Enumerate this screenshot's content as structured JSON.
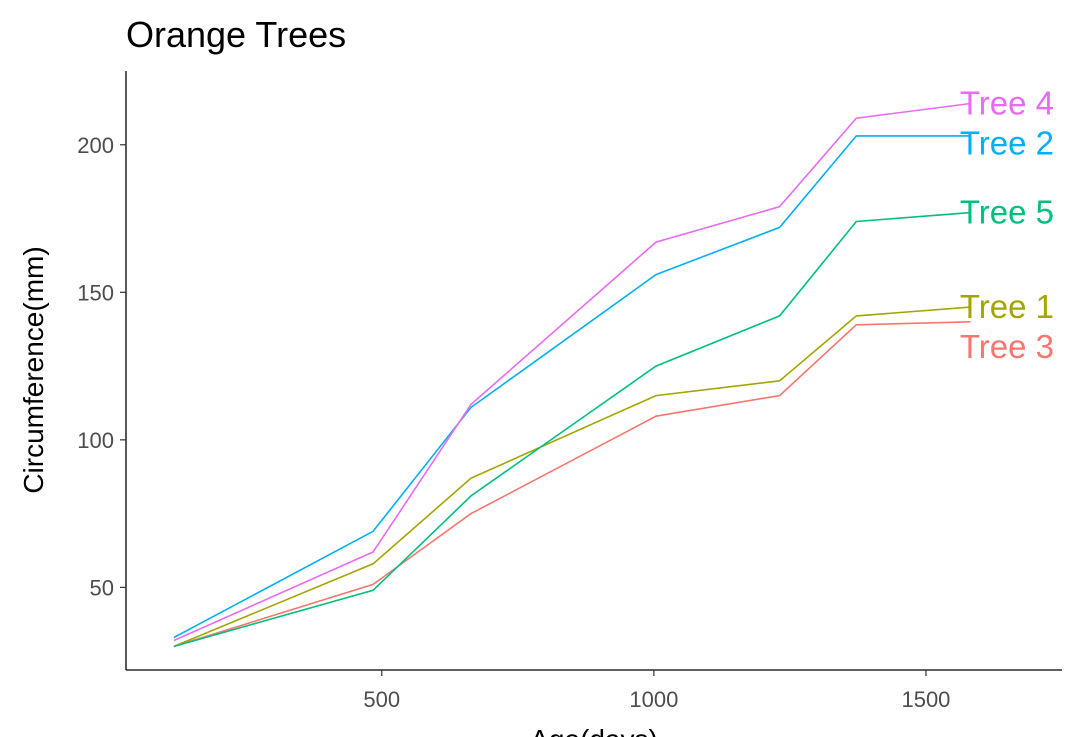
{
  "chart_data": {
    "type": "line",
    "title": "Orange Trees",
    "xlabel": "Age(days)",
    "ylabel": "Circumference(mm)",
    "xlim": [
      30,
      1750
    ],
    "ylim": [
      22,
      225
    ],
    "xticks": [
      500,
      1000,
      1500
    ],
    "yticks": [
      50,
      100,
      150,
      200
    ],
    "grid": false,
    "legend": "direct labels at line ends",
    "x": [
      118,
      484,
      664,
      1004,
      1231,
      1372,
      1582
    ],
    "series": [
      {
        "name": "Tree 1",
        "color": "#a3a500",
        "values": [
          30,
          58,
          87,
          115,
          120,
          142,
          145
        ]
      },
      {
        "name": "Tree 2",
        "color": "#00b0f6",
        "values": [
          33,
          69,
          111,
          156,
          172,
          203,
          203
        ]
      },
      {
        "name": "Tree 3",
        "color": "#f8766d",
        "values": [
          30,
          51,
          75,
          108,
          115,
          139,
          140
        ]
      },
      {
        "name": "Tree 4",
        "color": "#e76bf3",
        "values": [
          32,
          62,
          112,
          167,
          179,
          209,
          214
        ]
      },
      {
        "name": "Tree 5",
        "color": "#00bf7d",
        "values": [
          30,
          49,
          81,
          125,
          142,
          174,
          177
        ]
      }
    ]
  }
}
